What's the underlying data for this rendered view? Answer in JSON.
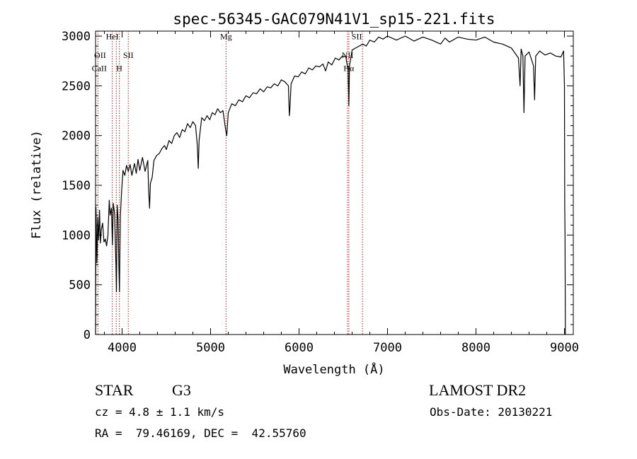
{
  "chart_data": {
    "type": "line",
    "title": "spec-56345-GAC079N41V1_sp15-221.fits",
    "xlabel": "Wavelength (Å)",
    "ylabel": "Flux (relative)",
    "xlim": [
      3700,
      9100
    ],
    "ylim": [
      0,
      3050
    ],
    "xticks": [
      4000,
      5000,
      6000,
      7000,
      8000,
      9000
    ],
    "yticks": [
      0,
      500,
      1000,
      1500,
      2000,
      2500,
      3000
    ],
    "grid": false,
    "line_color": "#000000",
    "marker_color": "#b22222",
    "spectral_lines": [
      {
        "name": "OII",
        "wavelength": 3727
      },
      {
        "name": "CaII",
        "wavelength": 3934
      },
      {
        "name": "HeI",
        "wavelength": 3889
      },
      {
        "name": "H",
        "wavelength": 3969
      },
      {
        "name": "SII",
        "wavelength": 4070
      },
      {
        "name": "Mg",
        "wavelength": 5175
      },
      {
        "name": "NII",
        "wavelength": 6548
      },
      {
        "name": "Hα",
        "wavelength": 6563
      },
      {
        "name": "SII",
        "wavelength": 6717
      }
    ],
    "series": [
      {
        "points": [
          [
            3700,
            0
          ],
          [
            3705,
            1280
          ],
          [
            3715,
            720
          ],
          [
            3725,
            1180
          ],
          [
            3735,
            950
          ],
          [
            3745,
            1250
          ],
          [
            3755,
            920
          ],
          [
            3765,
            1050
          ],
          [
            3780,
            1120
          ],
          [
            3795,
            930
          ],
          [
            3810,
            960
          ],
          [
            3825,
            890
          ],
          [
            3840,
            1000
          ],
          [
            3855,
            1350
          ],
          [
            3865,
            1200
          ],
          [
            3880,
            1270
          ],
          [
            3890,
            900
          ],
          [
            3900,
            1320
          ],
          [
            3915,
            1220
          ],
          [
            3930,
            700
          ],
          [
            3936,
            430
          ],
          [
            3945,
            1300
          ],
          [
            3955,
            1150
          ],
          [
            3965,
            640
          ],
          [
            3970,
            430
          ],
          [
            3980,
            1180
          ],
          [
            3995,
            1450
          ],
          [
            4010,
            1650
          ],
          [
            4030,
            1600
          ],
          [
            4050,
            1700
          ],
          [
            4070,
            1640
          ],
          [
            4090,
            1710
          ],
          [
            4110,
            1600
          ],
          [
            4140,
            1720
          ],
          [
            4160,
            1620
          ],
          [
            4180,
            1760
          ],
          [
            4200,
            1650
          ],
          [
            4230,
            1780
          ],
          [
            4260,
            1640
          ],
          [
            4290,
            1750
          ],
          [
            4300,
            1450
          ],
          [
            4310,
            1270
          ],
          [
            4320,
            1520
          ],
          [
            4340,
            1580
          ],
          [
            4360,
            1750
          ],
          [
            4390,
            1800
          ],
          [
            4420,
            1820
          ],
          [
            4450,
            1870
          ],
          [
            4480,
            1900
          ],
          [
            4500,
            1860
          ],
          [
            4530,
            1950
          ],
          [
            4560,
            1920
          ],
          [
            4590,
            2000
          ],
          [
            4620,
            2030
          ],
          [
            4650,
            1980
          ],
          [
            4680,
            2060
          ],
          [
            4710,
            2040
          ],
          [
            4740,
            2120
          ],
          [
            4770,
            2080
          ],
          [
            4800,
            2140
          ],
          [
            4830,
            2100
          ],
          [
            4850,
            1900
          ],
          [
            4861,
            1670
          ],
          [
            4870,
            1950
          ],
          [
            4900,
            2180
          ],
          [
            4930,
            2150
          ],
          [
            4960,
            2200
          ],
          [
            4990,
            2160
          ],
          [
            5020,
            2230
          ],
          [
            5050,
            2210
          ],
          [
            5080,
            2270
          ],
          [
            5110,
            2230
          ],
          [
            5140,
            2250
          ],
          [
            5167,
            2080
          ],
          [
            5172,
            2050
          ],
          [
            5183,
            2000
          ],
          [
            5200,
            2230
          ],
          [
            5240,
            2320
          ],
          [
            5280,
            2300
          ],
          [
            5320,
            2360
          ],
          [
            5360,
            2340
          ],
          [
            5400,
            2400
          ],
          [
            5440,
            2380
          ],
          [
            5480,
            2430
          ],
          [
            5520,
            2420
          ],
          [
            5560,
            2470
          ],
          [
            5600,
            2440
          ],
          [
            5640,
            2490
          ],
          [
            5680,
            2480
          ],
          [
            5720,
            2520
          ],
          [
            5760,
            2500
          ],
          [
            5800,
            2560
          ],
          [
            5840,
            2540
          ],
          [
            5880,
            2500
          ],
          [
            5890,
            2200
          ],
          [
            5896,
            2260
          ],
          [
            5910,
            2520
          ],
          [
            5950,
            2600
          ],
          [
            5990,
            2590
          ],
          [
            6030,
            2640
          ],
          [
            6070,
            2620
          ],
          [
            6110,
            2680
          ],
          [
            6150,
            2660
          ],
          [
            6190,
            2700
          ],
          [
            6230,
            2690
          ],
          [
            6270,
            2720
          ],
          [
            6300,
            2650
          ],
          [
            6330,
            2740
          ],
          [
            6370,
            2710
          ],
          [
            6410,
            2780
          ],
          [
            6450,
            2760
          ],
          [
            6490,
            2800
          ],
          [
            6530,
            2790
          ],
          [
            6555,
            2650
          ],
          [
            6563,
            2300
          ],
          [
            6570,
            2700
          ],
          [
            6600,
            2860
          ],
          [
            6640,
            2880
          ],
          [
            6680,
            2900
          ],
          [
            6720,
            2920
          ],
          [
            6760,
            2900
          ],
          [
            6800,
            2960
          ],
          [
            6850,
            2940
          ],
          [
            6900,
            2990
          ],
          [
            6950,
            2970
          ],
          [
            7000,
            3000
          ],
          [
            7100,
            2960
          ],
          [
            7200,
            3000
          ],
          [
            7300,
            2950
          ],
          [
            7400,
            2990
          ],
          [
            7500,
            2960
          ],
          [
            7600,
            2920
          ],
          [
            7650,
            2980
          ],
          [
            7700,
            2940
          ],
          [
            7800,
            2990
          ],
          [
            7900,
            2970
          ],
          [
            8000,
            2960
          ],
          [
            8100,
            2990
          ],
          [
            8200,
            2940
          ],
          [
            8300,
            2920
          ],
          [
            8400,
            2880
          ],
          [
            8480,
            2780
          ],
          [
            8498,
            2500
          ],
          [
            8510,
            2870
          ],
          [
            8530,
            2800
          ],
          [
            8542,
            2230
          ],
          [
            8555,
            2800
          ],
          [
            8600,
            2840
          ],
          [
            8650,
            2700
          ],
          [
            8662,
            2360
          ],
          [
            8675,
            2800
          ],
          [
            8720,
            2850
          ],
          [
            8780,
            2810
          ],
          [
            8840,
            2830
          ],
          [
            8900,
            2800
          ],
          [
            8960,
            2790
          ],
          [
            8990,
            2850
          ],
          [
            9000,
            2500
          ],
          [
            9003,
            1290
          ],
          [
            9006,
            1000
          ],
          [
            9010,
            0
          ]
        ]
      }
    ]
  },
  "footer": {
    "object_type": "STAR",
    "subclass": "G3",
    "survey": "LAMOST DR2",
    "cz": "cz = 4.8 ± 1.1 km/s",
    "obs_date": "Obs-Date: 20130221",
    "coords": "RA =  79.46169, DEC =  42.55760"
  }
}
